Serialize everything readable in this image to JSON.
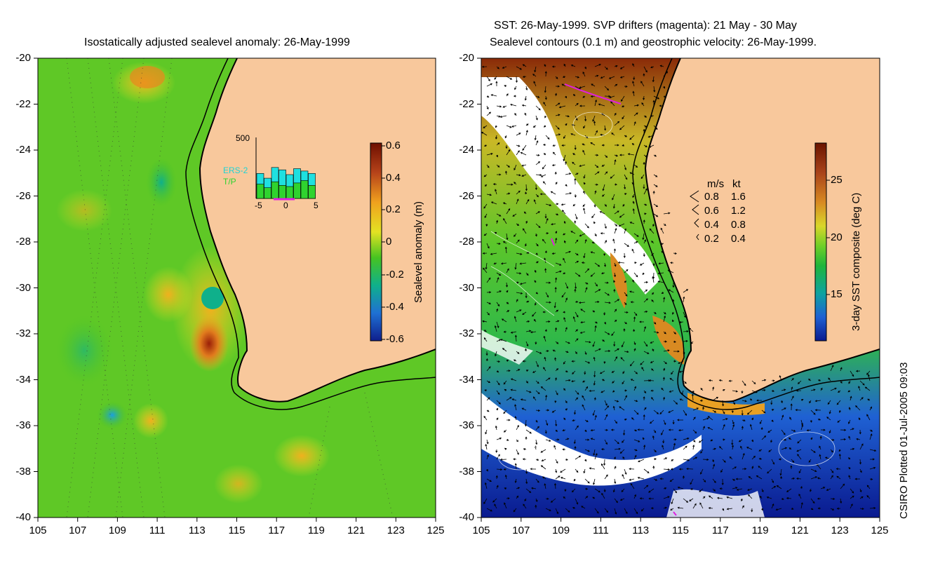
{
  "left_panel": {
    "title": "Isostatically adjusted sealevel anomaly: 26-May-1999",
    "colorbar": {
      "label": "Sealevel anomaly (m)",
      "ticks": [
        "0.6",
        "0.4",
        "0.2",
        "0",
        "-0.2",
        "-0.4",
        "-0.6"
      ],
      "colors": [
        "#6e0f00",
        "#b6431a",
        "#f0a11e",
        "#e3e223",
        "#46c321",
        "#0fb08b",
        "#1f70d3",
        "#0f1f8c"
      ]
    },
    "inset": {
      "ymax_label": "500",
      "series": [
        "ERS-2",
        "T/P"
      ],
      "xticks": [
        "-5",
        "0",
        "5"
      ],
      "ers2_values": [
        210,
        170,
        260,
        240,
        200,
        250,
        230,
        210
      ],
      "tp_values": [
        120,
        90,
        140,
        110,
        100,
        130,
        150,
        110
      ]
    }
  },
  "right_panel": {
    "title_line1": "SST: 26-May-1999. SVP drifters (magenta): 21 May - 30 May",
    "title_line2": "Sealevel contours (0.1 m) and geostrophic velocity: 26-May-1999.",
    "colorbar": {
      "label": "3-day SST composite (deg C)",
      "ticks": [
        "25",
        "20",
        "15"
      ],
      "colors": [
        "#6a1400",
        "#a9431a",
        "#d88a22",
        "#d9d72a",
        "#6fcf27",
        "#1fb53b",
        "#0fa3a0",
        "#1f61d3",
        "#0a1a8f"
      ]
    },
    "speed_legend": {
      "header_ms": "m/s",
      "header_kt": "kt",
      "rows": [
        {
          "ms": "0.8",
          "kt": "1.6"
        },
        {
          "ms": "0.6",
          "kt": "1.2"
        },
        {
          "ms": "0.4",
          "kt": "0.8"
        },
        {
          "ms": "0.2",
          "kt": "0.4"
        }
      ]
    }
  },
  "axes": {
    "y_labels": [
      "-20",
      "-22",
      "-24",
      "-26",
      "-28",
      "-30",
      "-32",
      "-34",
      "-36",
      "-38",
      "-40"
    ],
    "x_labels": [
      "105",
      "107",
      "109",
      "111",
      "113",
      "115",
      "117",
      "119",
      "121",
      "123",
      "125"
    ]
  },
  "footer": {
    "credit": "CSIRO Plotted 01-Jul-2005 09:03"
  },
  "colors": {
    "land": "#f8c89c",
    "coastline": "#000000"
  }
}
